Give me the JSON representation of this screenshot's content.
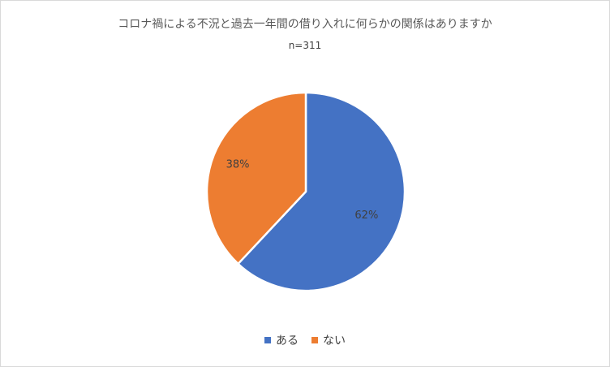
{
  "chart_data": {
    "type": "pie",
    "title": "コロナ禍による不況と過去一年間の借り入れに何らかの関係はありますか",
    "subtitle": "n=311",
    "slices": [
      {
        "label": "ある",
        "value": 62,
        "data_label": "62%",
        "color": "#4472c4"
      },
      {
        "label": "ない",
        "value": 38,
        "data_label": "38%",
        "color": "#ed7d31"
      }
    ],
    "start_angle": "12 o'clock",
    "direction": "clockwise",
    "legend_position": "bottom"
  }
}
